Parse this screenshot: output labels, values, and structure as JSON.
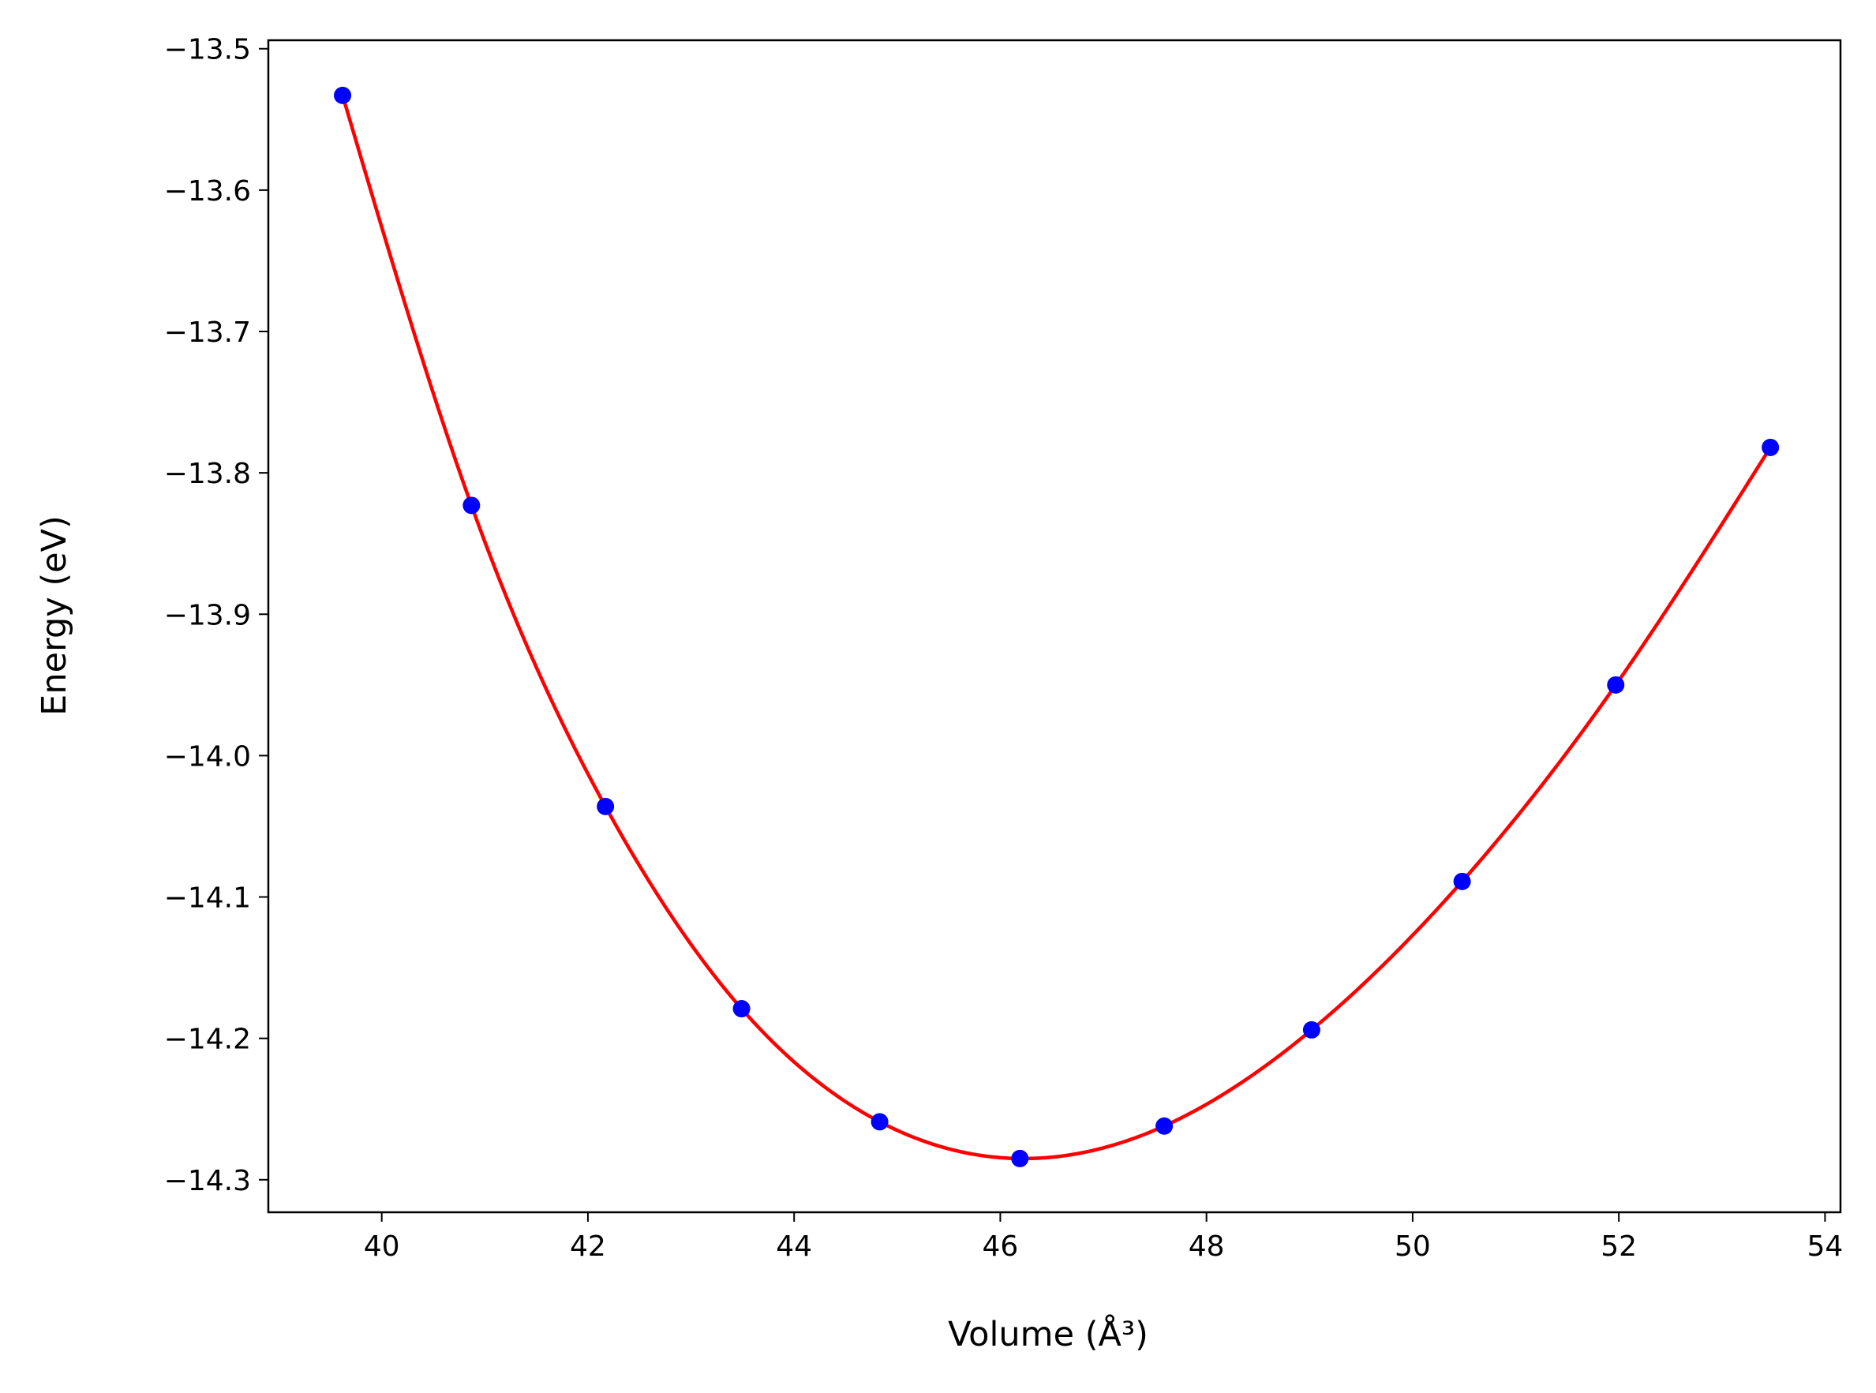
{
  "chart_data": {
    "type": "scatter",
    "xlabel": "Volume (Å³)",
    "ylabel": "Energy (eV)",
    "xlim": [
      38.9,
      54.15
    ],
    "ylim": [
      -14.323,
      -13.494
    ],
    "xticks": [
      40,
      42,
      44,
      46,
      48,
      50,
      52,
      54
    ],
    "yticks": [
      -13.5,
      -13.6,
      -13.7,
      -13.8,
      -13.9,
      -14.0,
      -14.1,
      -14.2,
      -14.3
    ],
    "xtick_labels": [
      "40",
      "42",
      "44",
      "46",
      "48",
      "50",
      "52",
      "54"
    ],
    "ytick_labels": [
      "−13.5",
      "−13.6",
      "−13.7",
      "−13.8",
      "−13.9",
      "−14.0",
      "−14.1",
      "−14.2",
      "−14.3"
    ],
    "grid": false,
    "series": [
      {
        "kind": "points",
        "color": "#0000ff",
        "x": [
          39.62,
          40.87,
          42.17,
          43.49,
          44.83,
          46.19,
          47.59,
          49.02,
          50.48,
          51.97,
          53.47
        ],
        "y": [
          -13.533,
          -13.823,
          -14.036,
          -14.179,
          -14.259,
          -14.285,
          -14.262,
          -14.194,
          -14.089,
          -13.95,
          -13.782
        ]
      },
      {
        "kind": "fit-curve",
        "color": "#ff0000",
        "x": [
          39.62,
          40.87,
          42.17,
          43.49,
          44.83,
          46.19,
          47.59,
          49.02,
          50.48,
          51.97,
          53.47
        ],
        "y": [
          -13.533,
          -13.823,
          -14.036,
          -14.179,
          -14.259,
          -14.285,
          -14.262,
          -14.194,
          -14.089,
          -13.95,
          -13.782
        ]
      }
    ]
  }
}
